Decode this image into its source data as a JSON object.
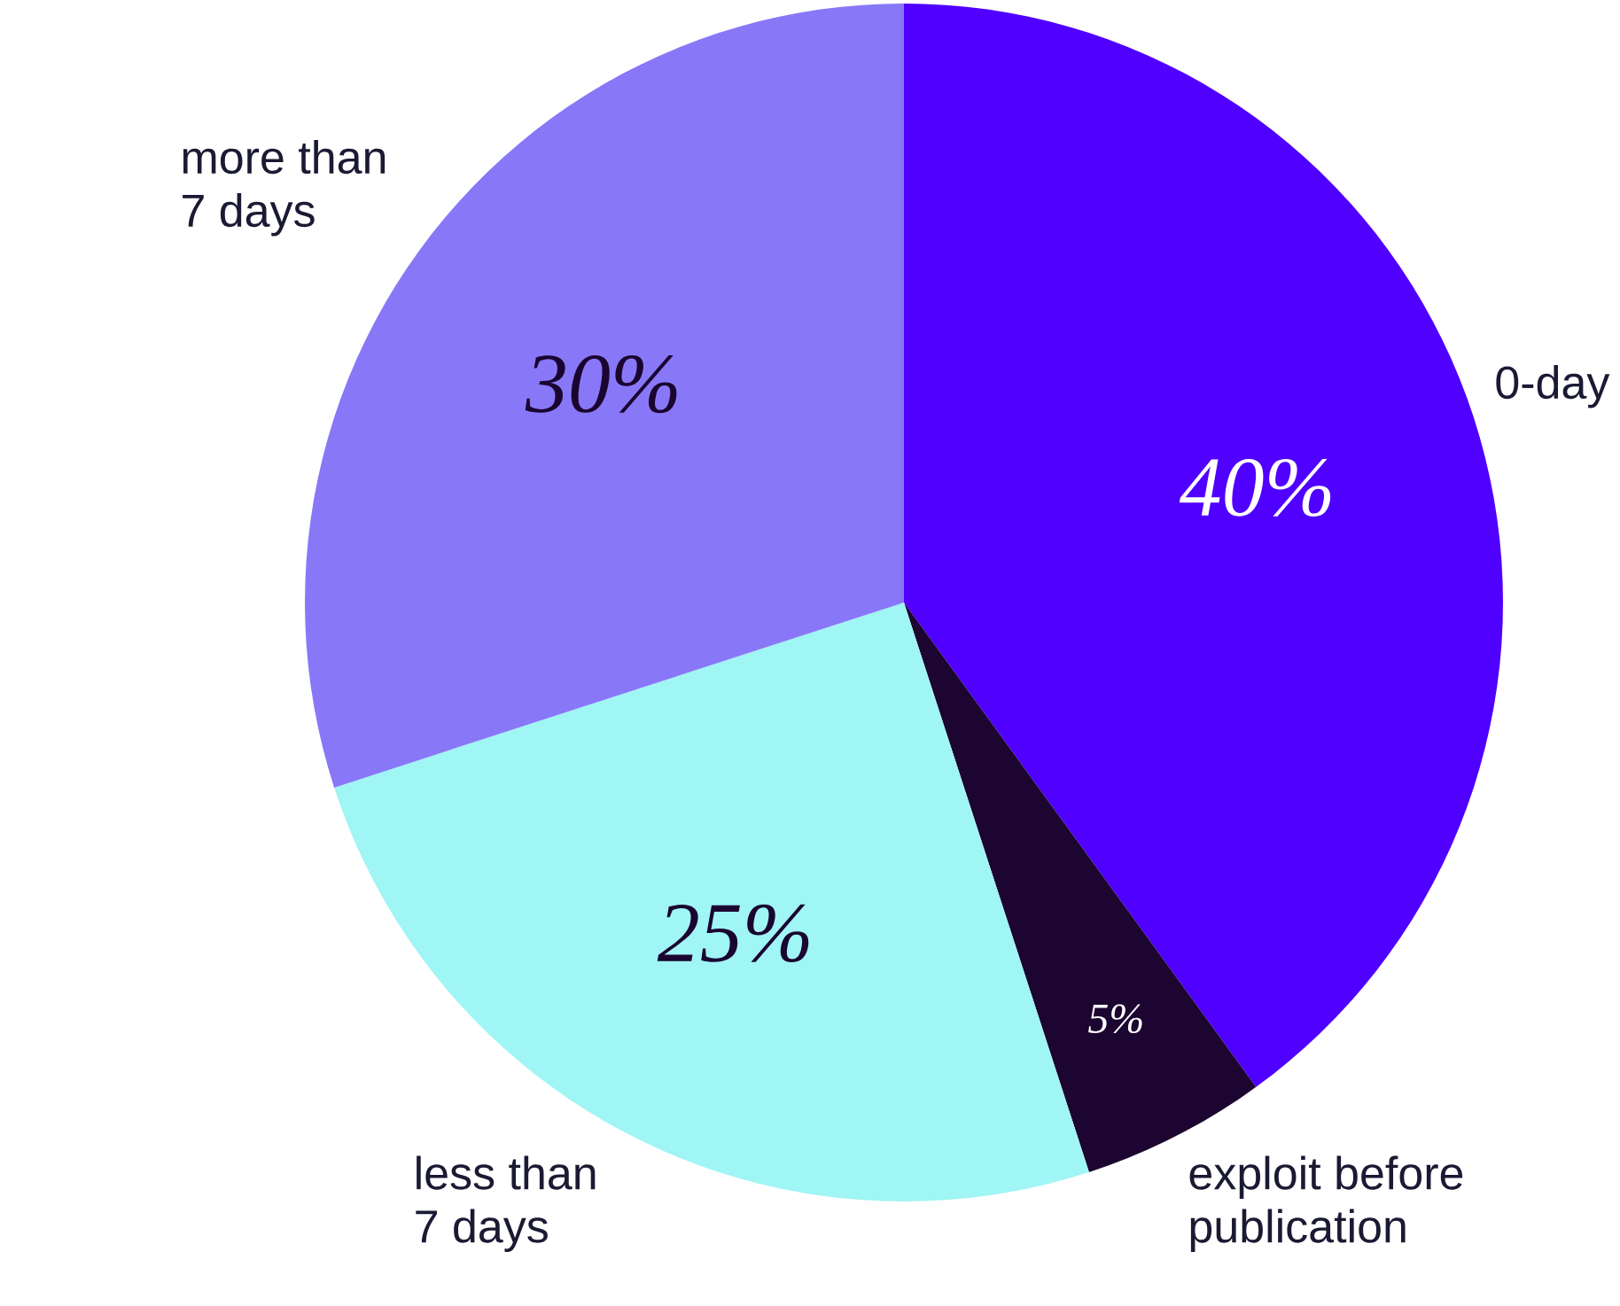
{
  "chart_data": {
    "type": "pie",
    "categories": [
      "0-day",
      "exploit before publication",
      "less than 7 days",
      "more than 7 days"
    ],
    "values": [
      40,
      5,
      25,
      30
    ],
    "colors": [
      "#5000ff",
      "#1c0530",
      "#a0f5f5",
      "#8878f8"
    ],
    "value_labels": [
      "40%",
      "5%",
      "25%",
      "30%"
    ]
  }
}
